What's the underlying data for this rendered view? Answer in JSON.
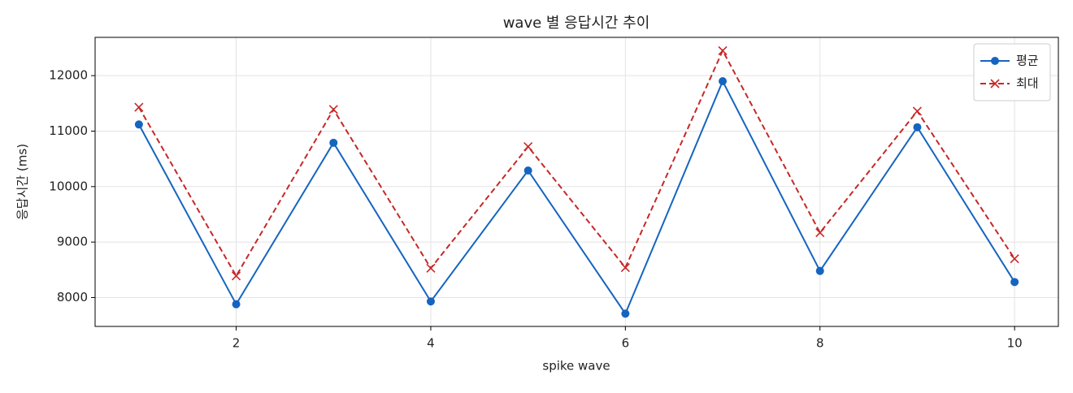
{
  "chart_data": {
    "type": "line",
    "title": "wave 별 응답시간 추이",
    "xlabel": "spike wave",
    "ylabel": "응답시간 (ms)",
    "x": [
      1,
      2,
      3,
      4,
      5,
      6,
      7,
      8,
      9,
      10
    ],
    "series": [
      {
        "name": "평균",
        "color": "#1565c0",
        "marker": "o",
        "linestyle": "solid",
        "values": [
          11120,
          7880,
          10790,
          7930,
          10290,
          7710,
          11900,
          8480,
          11070,
          8280
        ]
      },
      {
        "name": "최대",
        "color": "#c62828",
        "marker": "x",
        "linestyle": "dashed",
        "values": [
          11430,
          8390,
          11390,
          8530,
          10720,
          8540,
          12450,
          9170,
          11360,
          8700
        ]
      }
    ],
    "xlim": [
      0.55,
      10.45
    ],
    "xticks": [
      2,
      4,
      6,
      8,
      10
    ],
    "ylim": [
      7480,
      12690
    ],
    "yticks": [
      8000,
      9000,
      10000,
      11000,
      12000
    ],
    "grid": true,
    "legend": "upper right"
  }
}
